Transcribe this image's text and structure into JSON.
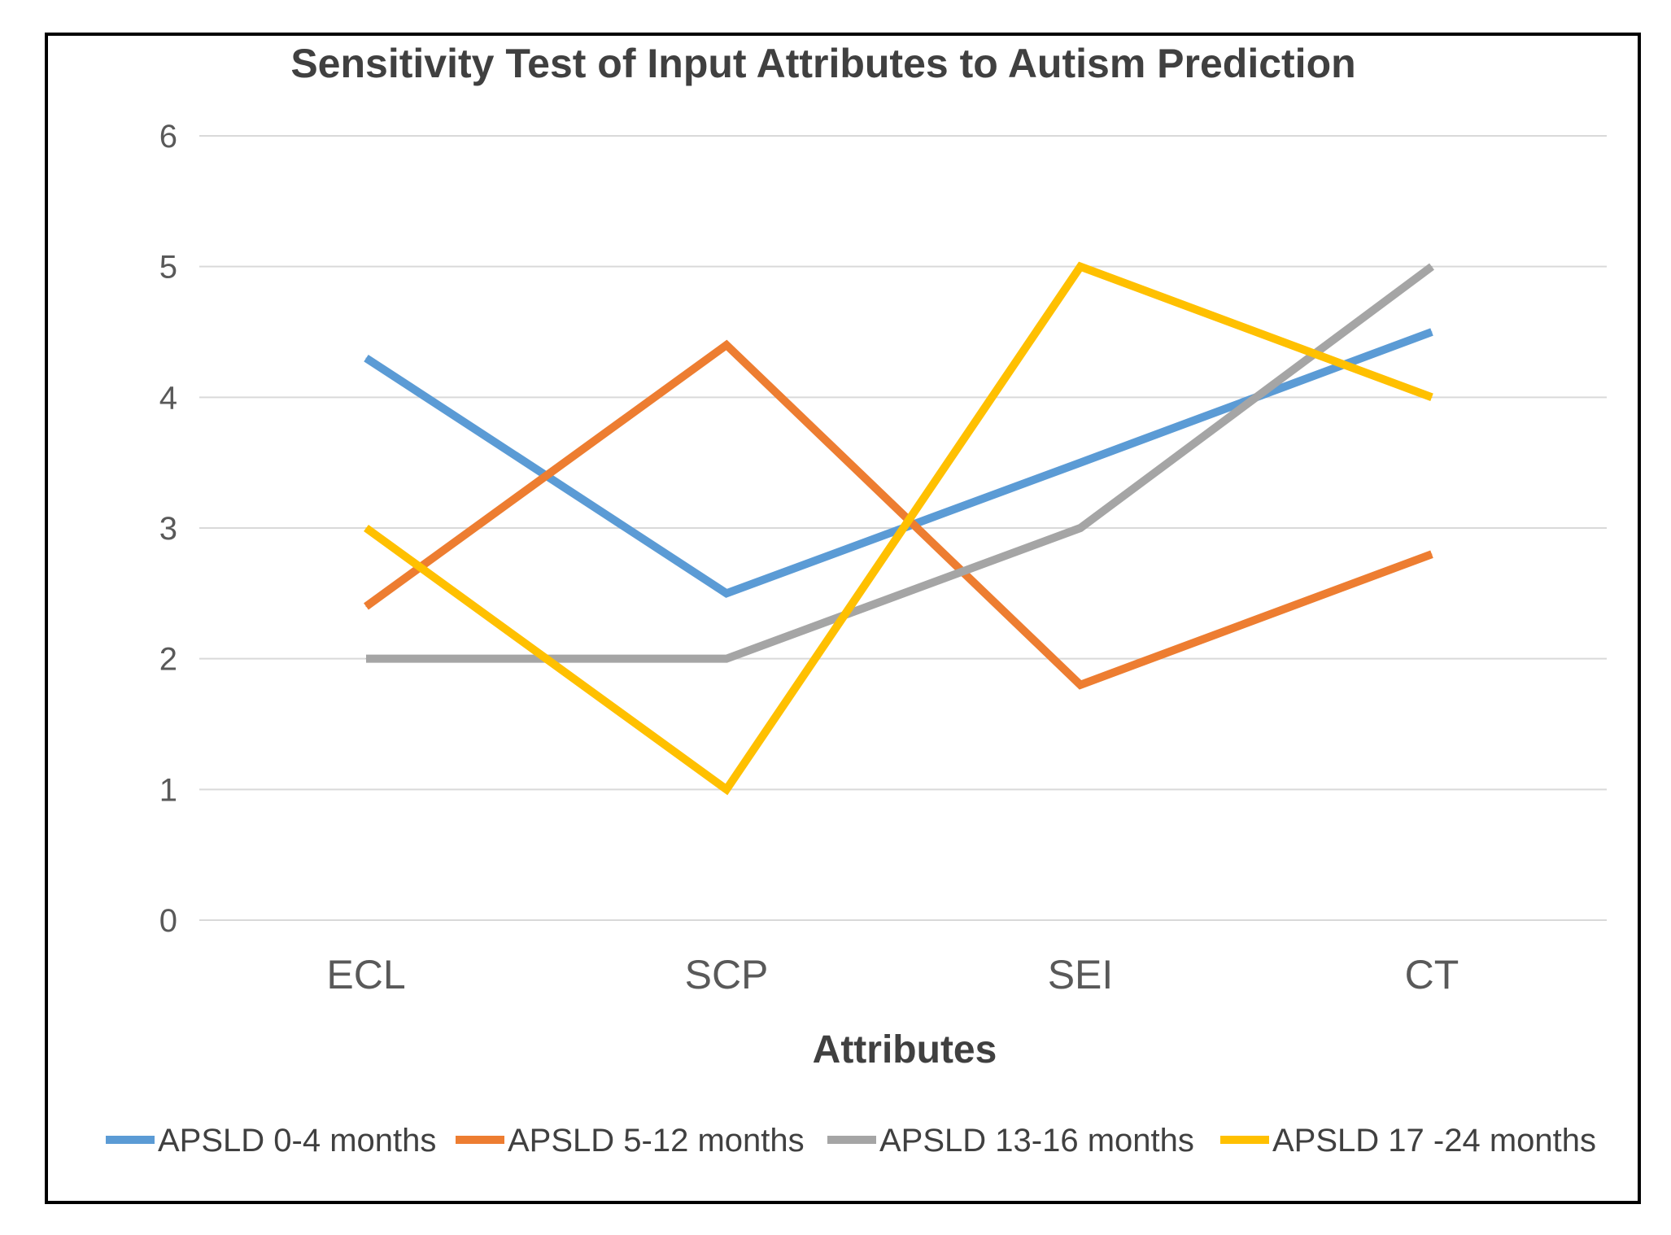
{
  "chart_data": {
    "type": "line",
    "title": "Sensitivity Test of Input Attributes to Autism Prediction",
    "xlabel": "Attributes",
    "ylabel": "",
    "categories": [
      "ECL",
      "SCP",
      "SEI",
      "CT"
    ],
    "ylim": [
      0,
      6
    ],
    "yticks": [
      "0",
      "1",
      "2",
      "3",
      "4",
      "5",
      "6"
    ],
    "grid": true,
    "legend_position": "bottom",
    "series": [
      {
        "name": "APSLD 0-4 months",
        "color": "#5B9BD5",
        "values": [
          4.3,
          2.5,
          3.5,
          4.5
        ]
      },
      {
        "name": "APSLD 5-12 months",
        "color": "#ED7D31",
        "values": [
          2.4,
          4.4,
          1.8,
          2.8
        ]
      },
      {
        "name": "APSLD 13-16 months",
        "color": "#A5A5A5",
        "values": [
          2.0,
          2.0,
          3.0,
          5.0
        ]
      },
      {
        "name": "APSLD 17 -24 months",
        "color": "#FFC000",
        "values": [
          3.0,
          1.0,
          5.0,
          4.0
        ]
      }
    ]
  }
}
